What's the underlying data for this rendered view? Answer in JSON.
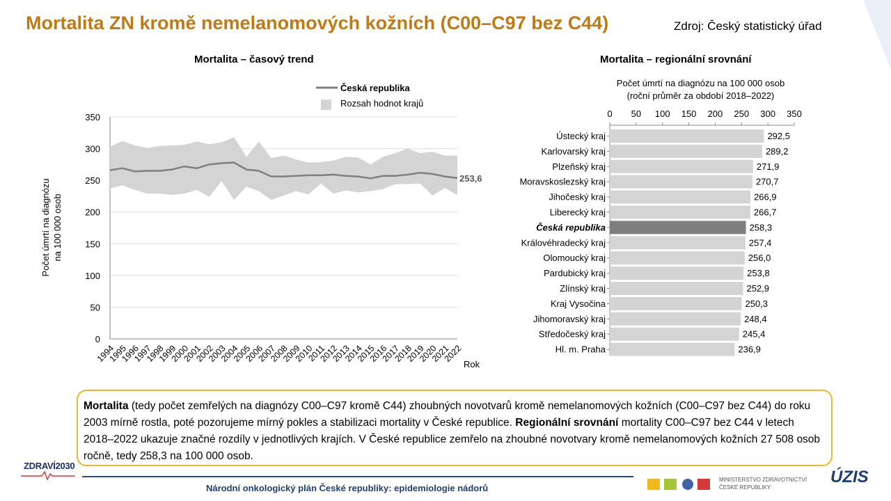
{
  "slide": {
    "title": "Mortalita ZN kromě nemelanomových kožních (C00–C97 bez C44)",
    "source": "Zdroj: Český statistický úřad"
  },
  "trend_panel": {
    "title": "Mortalita – časový trend"
  },
  "region_panel": {
    "title": "Mortalita – regionální srovnání"
  },
  "chart_data": [
    {
      "type": "line",
      "title": "Mortalita – časový trend",
      "xlabel": "Rok",
      "ylabel": "Počet úmrtí  na diagnózu\nna 100 000 osob",
      "ylim": [
        0,
        350
      ],
      "yticks": [
        0,
        50,
        100,
        150,
        200,
        250,
        300,
        350
      ],
      "grid": true,
      "legend_position": "top-right",
      "x": [
        "1994",
        "1995",
        "1996",
        "1997",
        "1998",
        "1999",
        "2000",
        "2001",
        "2002",
        "2003",
        "2004",
        "2005",
        "2006",
        "2007",
        "2008",
        "2009",
        "2010",
        "2011",
        "2012",
        "2013",
        "2014",
        "2015",
        "2016",
        "2017",
        "2018",
        "2019",
        "2020",
        "2021",
        "2022"
      ],
      "series": [
        {
          "name": "Česká republika",
          "color": "#7f7f7f",
          "values": [
            266,
            269,
            264,
            265,
            265,
            267,
            272,
            269,
            275,
            277,
            278,
            267,
            265,
            256,
            256,
            257,
            258,
            258,
            259,
            257,
            256,
            253,
            257,
            257,
            259,
            262,
            260,
            256,
            253.6
          ]
        },
        {
          "name": "Rozsah hodnot krajů",
          "color": "#d4d4d4",
          "upper": [
            303,
            312,
            305,
            301,
            304,
            305,
            306,
            311,
            307,
            310,
            318,
            287,
            311,
            285,
            289,
            283,
            278,
            279,
            281,
            287,
            286,
            275,
            287,
            293,
            300,
            293,
            295,
            289,
            289
          ],
          "lower": [
            237,
            242,
            235,
            229,
            229,
            227,
            229,
            235,
            224,
            249,
            219,
            240,
            233,
            219,
            226,
            233,
            228,
            245,
            229,
            234,
            231,
            233,
            236,
            244,
            244,
            245,
            226,
            238,
            227
          ]
        }
      ],
      "end_label": "253,6"
    },
    {
      "type": "bar",
      "orientation": "horizontal",
      "title": "Mortalita – regionální srovnání",
      "xlabel": "Počet úmrtí  na diagnózu na 100 000 osob\n(roční průměr  za období 2018–2022)",
      "xlim": [
        0,
        350
      ],
      "xticks": [
        0,
        50,
        100,
        150,
        200,
        250,
        300,
        350
      ],
      "bar_color": "#d4d4d4",
      "highlight_color": "#7f7f7f",
      "categories": [
        "Ústecký kraj",
        "Karlovarský kraj",
        "Plzeňský kraj",
        "Moravskoslezský kraj",
        "Jihočeský kraj",
        "Liberecký kraj",
        "Česká republika",
        "Královéhradecký kraj",
        "Olomoucký kraj",
        "Pardubický kraj",
        "Zlínský kraj",
        "Kraj Vysočina",
        "Jihomoravský kraj",
        "Středočeský kraj",
        "Hl. m.  Praha"
      ],
      "values": [
        292.5,
        289.2,
        271.9,
        270.7,
        266.9,
        266.7,
        258.3,
        257.4,
        256.0,
        253.8,
        252.9,
        250.3,
        248.4,
        245.4,
        236.9
      ],
      "value_labels": [
        "292,5",
        "289,2",
        "271,9",
        "270,7",
        "266,9",
        "266,7",
        "258,3",
        "257,4",
        "256,0",
        "253,8",
        "252,9",
        "250,3",
        "248,4",
        "245,4",
        "236,9"
      ],
      "highlight": "Česká republika"
    }
  ],
  "summary": {
    "part1_bold": "Mortalita",
    "part1": " (tedy počet zemřelých na diagnózy C00–C97 kromě C44) zhoubných novotvarů kromě nemelanomových kožních (C00–C97 bez C44) do roku 2003 mírně rostla, poté pozorujeme mírný pokles a stabilizaci mortality v České republice. ",
    "part2_bold": "Regionální srovnání",
    "part2": " mortality C00–C97 bez C44 v letech  2018–2022 ukazuje značné rozdíly v jednotlivých krajích. V České republice zemřelo na zhoubné novotvary kromě nemelanomových kožních 27 508 osob ročně, tedy 258,3 na 100 000 osob."
  },
  "footer": {
    "text": "Národní onkologický plán České republiky: epidemiologie nádorů",
    "logo_zdravi": "ZDRAVÍ2030",
    "ministry_line1": "MINISTERSTVO ZDRAVOTNICTVÍ",
    "ministry_line2": "ČESKÉ REPUBLIKY",
    "uzis": "ÚZIS"
  }
}
